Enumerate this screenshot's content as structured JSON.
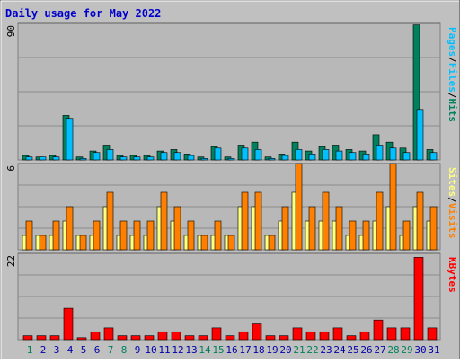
{
  "title": "Daily usage for May 2022",
  "colors": {
    "background": "#c0c0c0",
    "plot_bg": "#b8b8b8",
    "title": "#0000cc",
    "hits": "#00805c",
    "files": "#00c0ff",
    "pages": "#00c0ff",
    "visits": "#ff8000",
    "sites": "#ffff80",
    "kbytes": "#ff0000",
    "weekend_day": "#00805c",
    "weekday": "#0000aa"
  },
  "chart_data": [
    {
      "type": "bar",
      "name": "top",
      "categories": [
        "1",
        "2",
        "3",
        "4",
        "5",
        "6",
        "7",
        "8",
        "9",
        "10",
        "11",
        "12",
        "13",
        "14",
        "15",
        "16",
        "17",
        "18",
        "19",
        "20",
        "21",
        "22",
        "23",
        "24",
        "25",
        "26",
        "27",
        "28",
        "29",
        "30",
        "31"
      ],
      "weekend_days": [
        "1",
        "7",
        "8",
        "14",
        "15",
        "21",
        "22",
        "28",
        "29"
      ],
      "ymax_label": "90",
      "ylim": [
        0,
        92
      ],
      "axis_label_parts": [
        "Pages",
        "/",
        "Files",
        "/",
        "Hits"
      ],
      "series": [
        {
          "name": "Hits",
          "values": [
            3,
            2,
            3,
            30,
            2,
            6,
            10,
            3,
            3,
            3,
            6,
            7,
            4,
            2,
            9,
            2,
            10,
            12,
            2,
            4,
            12,
            6,
            9,
            10,
            7,
            6,
            17,
            12,
            8,
            91,
            7
          ]
        },
        {
          "name": "Files",
          "values": [
            2,
            2,
            2,
            28,
            1,
            5,
            7,
            2,
            2,
            2,
            5,
            5,
            3,
            1,
            8,
            1,
            8,
            7,
            1,
            3,
            7,
            4,
            7,
            6,
            5,
            4,
            10,
            8,
            5,
            34,
            5
          ]
        },
        {
          "name": "Pages",
          "values": [
            0,
            0,
            0,
            0,
            0,
            0,
            0,
            0,
            0,
            0,
            0,
            0,
            0,
            0,
            0,
            0,
            0,
            0,
            0,
            0,
            0,
            0,
            0,
            0,
            0,
            0,
            0,
            0,
            0,
            0,
            0
          ]
        }
      ]
    },
    {
      "type": "bar",
      "name": "middle",
      "categories": [
        "1",
        "2",
        "3",
        "4",
        "5",
        "6",
        "7",
        "8",
        "9",
        "10",
        "11",
        "12",
        "13",
        "14",
        "15",
        "16",
        "17",
        "18",
        "19",
        "20",
        "21",
        "22",
        "23",
        "24",
        "25",
        "26",
        "27",
        "28",
        "29",
        "30",
        "31"
      ],
      "ymax_label": "6",
      "ylim": [
        0,
        6
      ],
      "axis_label_parts": [
        "Sites",
        "/",
        "Visits"
      ],
      "series": [
        {
          "name": "Visits",
          "values": [
            2,
            1,
            2,
            3,
            1,
            2,
            4,
            2,
            2,
            2,
            4,
            3,
            2,
            1,
            2,
            1,
            4,
            4,
            1,
            3,
            6,
            3,
            4,
            3,
            2,
            2,
            4,
            6,
            2,
            4,
            3
          ]
        },
        {
          "name": "Sites",
          "values": [
            1,
            1,
            1,
            2,
            1,
            1,
            3,
            1,
            1,
            1,
            3,
            2,
            1,
            1,
            1,
            1,
            3,
            3,
            1,
            2,
            4,
            2,
            2,
            2,
            1,
            1,
            2,
            3,
            1,
            3,
            2
          ]
        }
      ]
    },
    {
      "type": "bar",
      "name": "bottom",
      "categories": [
        "1",
        "2",
        "3",
        "4",
        "5",
        "6",
        "7",
        "8",
        "9",
        "10",
        "11",
        "12",
        "13",
        "14",
        "15",
        "16",
        "17",
        "18",
        "19",
        "20",
        "21",
        "22",
        "23",
        "24",
        "25",
        "26",
        "27",
        "28",
        "29",
        "30",
        "31"
      ],
      "ymax_label": "22",
      "ylim": [
        0,
        22
      ],
      "axis_label_parts": [
        "KBytes"
      ],
      "series": [
        {
          "name": "KBytes",
          "values": [
            1,
            1,
            1,
            8,
            0.5,
            2,
            3,
            1,
            1,
            1,
            2,
            2,
            1,
            1,
            3,
            1,
            2,
            4,
            1,
            1,
            3,
            2,
            2,
            3,
            1,
            2,
            5,
            3,
            3,
            21,
            3
          ]
        }
      ]
    }
  ]
}
